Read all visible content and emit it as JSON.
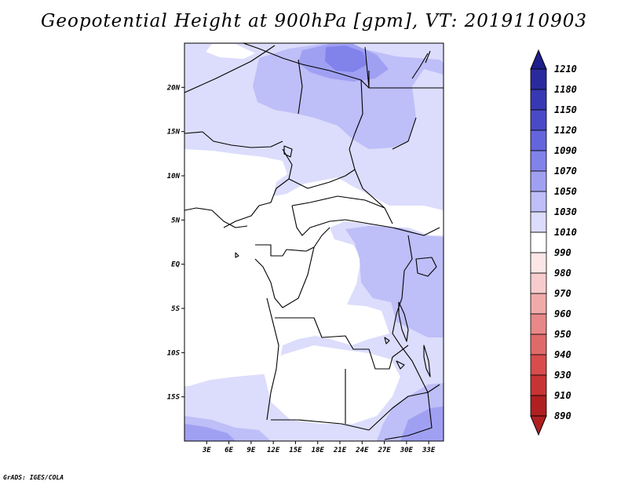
{
  "title": "Geopotential Height at 900hPa [gpm], VT: 2019110903",
  "credit": "GrADS: IGES/COLA",
  "map": {
    "region": "Central Africa",
    "lon_range": [
      0,
      35
    ],
    "lat_range": [
      -20,
      25
    ],
    "lat_ticks": [
      {
        "label": "20N",
        "lat": 20
      },
      {
        "label": "15N",
        "lat": 15
      },
      {
        "label": "10N",
        "lat": 10
      },
      {
        "label": "5N",
        "lat": 5
      },
      {
        "label": "EQ",
        "lat": 0
      },
      {
        "label": "5S",
        "lat": -5
      },
      {
        "label": "10S",
        "lat": -10
      },
      {
        "label": "15S",
        "lat": -15
      }
    ],
    "lon_ticks": [
      {
        "label": "3E",
        "lon": 3
      },
      {
        "label": "6E",
        "lon": 6
      },
      {
        "label": "9E",
        "lon": 9
      },
      {
        "label": "12E",
        "lon": 12
      },
      {
        "label": "15E",
        "lon": 15
      },
      {
        "label": "18E",
        "lon": 18
      },
      {
        "label": "21E",
        "lon": 21
      },
      {
        "label": "24E",
        "lon": 24
      },
      {
        "label": "27E",
        "lon": 27
      },
      {
        "label": "30E",
        "lon": 30
      },
      {
        "label": "33E",
        "lon": 33
      }
    ]
  },
  "colorbar": {
    "levels": [
      {
        "label": "1210",
        "color": "#1e1e8c"
      },
      {
        "label": "1180",
        "color": "#2a2a9e"
      },
      {
        "label": "1150",
        "color": "#3838b4"
      },
      {
        "label": "1120",
        "color": "#4a4ac8"
      },
      {
        "label": "1090",
        "color": "#6464dc"
      },
      {
        "label": "1070",
        "color": "#8282eb"
      },
      {
        "label": "1050",
        "color": "#a0a0f3"
      },
      {
        "label": "1030",
        "color": "#bebef8"
      },
      {
        "label": "1010",
        "color": "#dcdcfc"
      },
      {
        "label": "990",
        "color": "#ffffff"
      },
      {
        "label": "980",
        "color": "#fce6e6"
      },
      {
        "label": "970",
        "color": "#f8cccc"
      },
      {
        "label": "960",
        "color": "#f0aaaa"
      },
      {
        "label": "950",
        "color": "#e88888"
      },
      {
        "label": "940",
        "color": "#e06a6a"
      },
      {
        "label": "930",
        "color": "#d84c4c"
      },
      {
        "label": "910",
        "color": "#c83434"
      },
      {
        "label": "890",
        "color": "#b02020"
      }
    ],
    "over_color": "#1e1e8c",
    "under_color": "#b02020"
  },
  "map_colors": {
    "white": "#ffffff",
    "c1010": "#dcdcfc",
    "c1030": "#bebef8",
    "c1050": "#a0a0f3",
    "c1070": "#8282eb",
    "border": "#000000"
  }
}
